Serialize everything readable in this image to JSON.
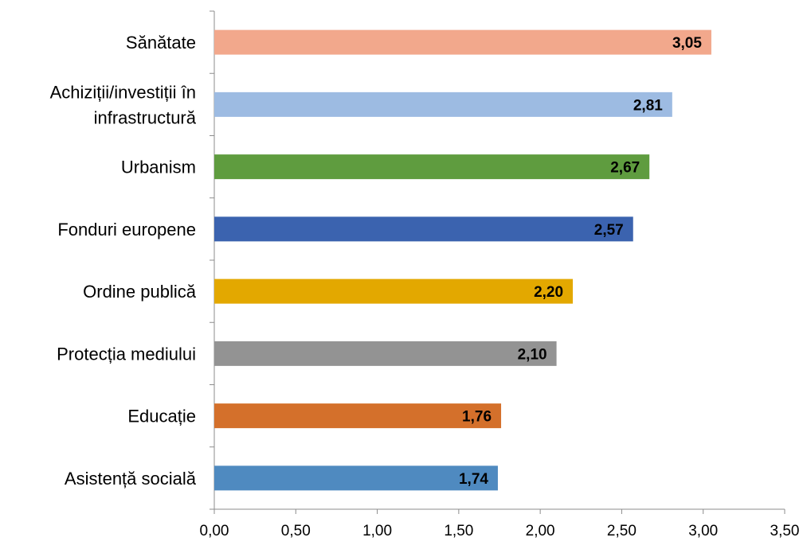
{
  "chart_data": {
    "type": "bar",
    "orientation": "horizontal",
    "title": "",
    "xlabel": "",
    "ylabel": "",
    "xlim": [
      0,
      3.5
    ],
    "x_ticks": [
      0,
      0.5,
      1.0,
      1.5,
      2.0,
      2.5,
      3.0,
      3.5
    ],
    "x_tick_labels": [
      "0,00",
      "0,50",
      "1,00",
      "1,50",
      "2,00",
      "2,50",
      "3,00",
      "3,50"
    ],
    "grid": false,
    "legend": "none",
    "categories": [
      "Sănătate",
      "Achiziții/investiții în infrastructură",
      "Urbanism",
      "Fonduri europene",
      "Ordine publică",
      "Protecția mediului",
      "Educație",
      "Asistență socială"
    ],
    "category_lines": [
      [
        "Sănătate"
      ],
      [
        "Achiziții/investiții în",
        "infrastructură"
      ],
      [
        "Urbanism"
      ],
      [
        "Fonduri europene"
      ],
      [
        "Ordine publică"
      ],
      [
        "Protecția mediului"
      ],
      [
        "Educație"
      ],
      [
        "Asistență socială"
      ]
    ],
    "values": [
      3.05,
      2.81,
      2.67,
      2.57,
      2.2,
      2.1,
      1.76,
      1.74
    ],
    "value_labels": [
      "3,05",
      "2,81",
      "2,67",
      "2,57",
      "2,20",
      "2,10",
      "1,76",
      "1,74"
    ],
    "colors": [
      "#F2A88C",
      "#9DBBE2",
      "#5F9C3F",
      "#3B63AF",
      "#E3A800",
      "#939393",
      "#D4702B",
      "#4F8AC0"
    ]
  }
}
